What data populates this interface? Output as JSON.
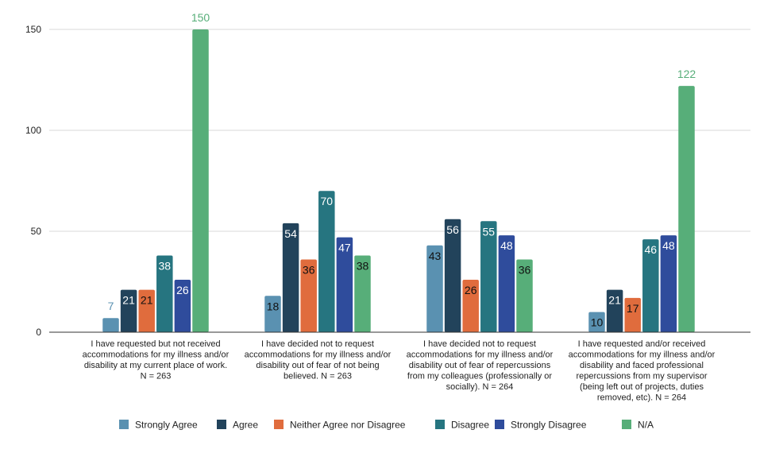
{
  "chart_data": {
    "type": "bar",
    "title": "",
    "xlabel": "",
    "ylabel": "",
    "ylim": [
      0,
      150
    ],
    "yticks": [
      "0",
      "50",
      "100",
      "150"
    ],
    "grid": true,
    "legend_position": "bottom",
    "categories": [
      "I have requested but not received accommodations for my illness and/or disability at my current place of work. N = 263",
      "I have decided not to request accommodations for my illness and/or disability out of fear of not being believed. N = 263",
      "I have decided not to request accommodations for my illness and/or disability out of fear of repercussions from my colleagues (professionally or socially). N = 264",
      "I have requested and/or received accommodations for my illness and/or disability and faced professional repercussions from my supervisor (being left out of projects, duties removed, etc). N = 264"
    ],
    "category_lines": [
      [
        "I have requested but not received",
        "accommodations for my illness and/or",
        "disability at my current place of work.",
        "N = 263"
      ],
      [
        "I have decided not to request",
        "accommodations for my illness and/or",
        "disability out of fear of not being",
        "believed. N = 263"
      ],
      [
        "I have decided not to request",
        "accommodations for my illness and/or",
        "disability out of fear of repercussions",
        "from my colleagues (professionally or",
        "socially). N = 264"
      ],
      [
        "I have requested and/or received",
        "accommodations for my illness and/or",
        "disability and faced professional",
        "repercussions from my supervisor",
        "(being left out of projects, duties",
        "removed, etc). N = 264"
      ]
    ],
    "series": [
      {
        "name": "Strongly Agree",
        "color": "#5a91b1",
        "label_color": "#111111",
        "values": [
          7,
          18,
          43,
          10
        ]
      },
      {
        "name": "Agree",
        "color": "#22435b",
        "label_color": "#ffffff",
        "values": [
          21,
          54,
          56,
          21
        ]
      },
      {
        "name": "Neither Agree nor Disagree",
        "color": "#e06c3d",
        "label_color": "#111111",
        "values": [
          21,
          36,
          26,
          17
        ]
      },
      {
        "name": "Disagree",
        "color": "#267580",
        "label_color": "#ffffff",
        "values": [
          38,
          70,
          55,
          46
        ]
      },
      {
        "name": "Strongly Disagree",
        "color": "#2f4c9c",
        "label_color": "#ffffff",
        "values": [
          26,
          47,
          48,
          48
        ]
      },
      {
        "name": "N/A",
        "color": "#57ae79",
        "label_color": "#111111",
        "values": [
          150,
          38,
          36,
          122
        ]
      }
    ]
  }
}
